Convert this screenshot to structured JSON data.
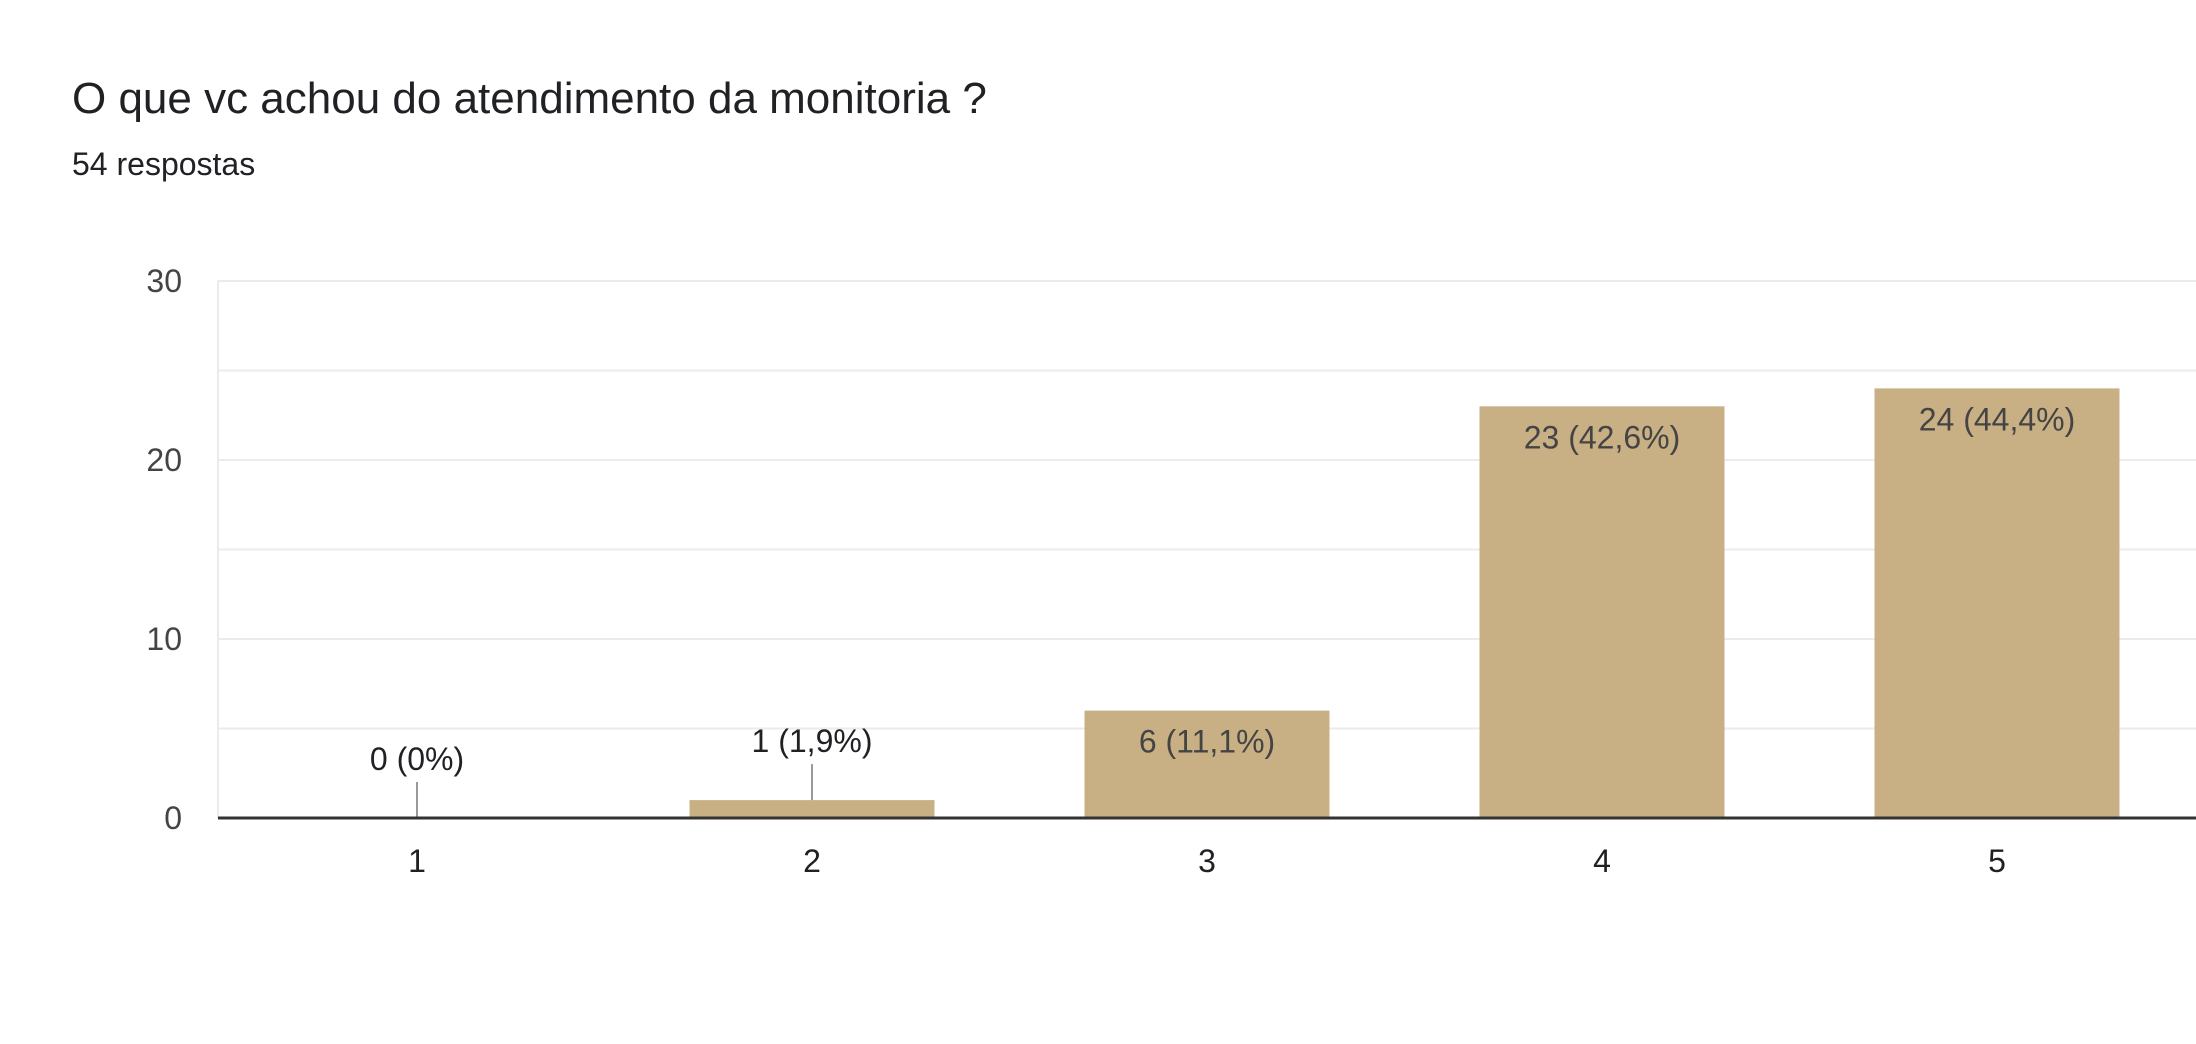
{
  "question": {
    "title": "O que vc achou do atendimento da monitoria ?",
    "responses": "54 respostas"
  },
  "colors": {
    "bar": "#c8b084",
    "grid": "#ebebeb",
    "axis": "#333333",
    "text": "#444444",
    "leader": "#999999"
  },
  "chart_data": {
    "type": "bar",
    "categories": [
      "1",
      "2",
      "3",
      "4",
      "5"
    ],
    "values": [
      0,
      1,
      6,
      23,
      24
    ],
    "data_labels": [
      "0 (0%)",
      "1 (1,9%)",
      "6 (11,1%)",
      "23 (42,6%)",
      "24 (44,4%)"
    ],
    "ylim": [
      0,
      30
    ],
    "y_ticks": [
      0,
      10,
      20,
      30
    ],
    "y_tick_labels": [
      "0",
      "10",
      "20",
      "30"
    ],
    "grid": true,
    "legend": "none"
  }
}
